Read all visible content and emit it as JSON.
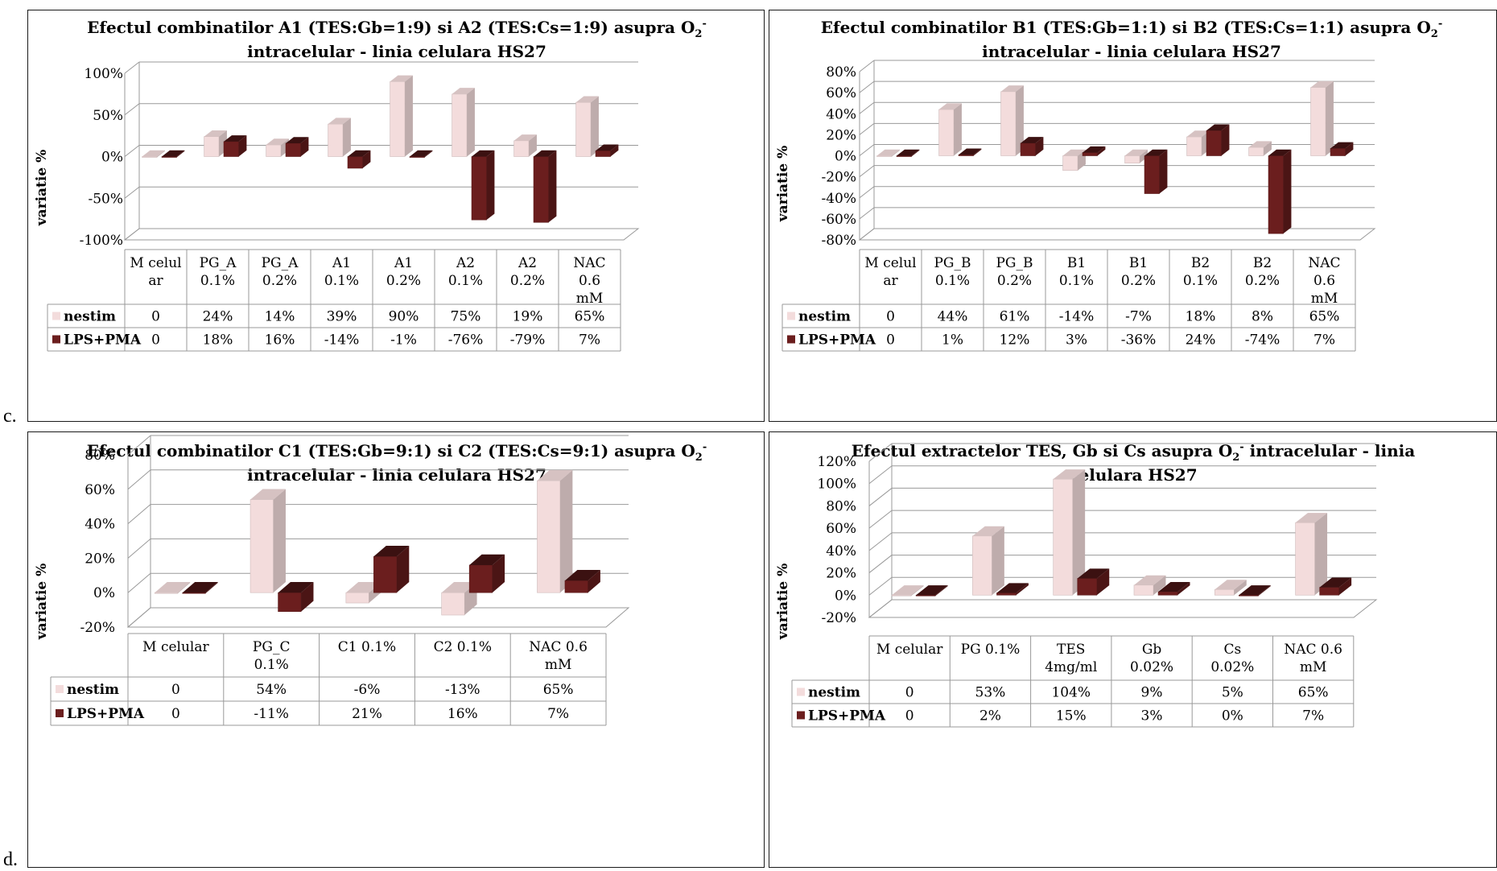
{
  "figure_labels": {
    "c": "c.",
    "d": "d."
  },
  "legend": {
    "nestim": "nestim",
    "lps": "LPS+PMA"
  },
  "colors": {
    "nestim": "#f3dcdc",
    "lps": "#6b1e1e",
    "grid": "#999999",
    "border": "#1a1a1a"
  },
  "chart_data": [
    {
      "id": "A",
      "type": "bar",
      "title_lines": [
        "Efectul combinatilor A1 (TES:Gb=1:9) si A2 (TES:Cs=1:9) asupra O",
        "intracelular - linia celulara HS27"
      ],
      "title_sub": "2",
      "title_sup": "-",
      "ylabel": "variatie %",
      "yticks": [
        "100%",
        "50%",
        "0%",
        "-50%",
        "-100%"
      ],
      "ylim": [
        -100,
        100
      ],
      "categories": [
        [
          "M celul",
          "ar"
        ],
        [
          "PG_A",
          "0.1%"
        ],
        [
          "PG_A",
          "0.2%"
        ],
        [
          "A1",
          "0.1%"
        ],
        [
          "A1",
          "0.2%"
        ],
        [
          "A2",
          "0.1%"
        ],
        [
          "A2",
          "0.2%"
        ],
        [
          "NAC",
          "0.6",
          "mM"
        ]
      ],
      "series": [
        {
          "name": "nestim",
          "values": [
            0,
            24,
            14,
            39,
            90,
            75,
            19,
            65
          ],
          "labels": [
            "0",
            "24%",
            "14%",
            "39%",
            "90%",
            "75%",
            "19%",
            "65%"
          ]
        },
        {
          "name": "LPS+PMA",
          "values": [
            0,
            18,
            16,
            -14,
            -1,
            -76,
            -79,
            7
          ],
          "labels": [
            "0",
            "18%",
            "16%",
            "-14%",
            "-1%",
            "-76%",
            "-79%",
            "7%"
          ]
        }
      ]
    },
    {
      "id": "B",
      "type": "bar",
      "title_lines": [
        "Efectul combinatilor B1 (TES:Gb=1:1) si B2 (TES:Cs=1:1) asupra O",
        "intracelular - linia celulara HS27"
      ],
      "title_sub": "2",
      "title_sup": "-",
      "ylabel": "variatie %",
      "yticks": [
        "80%",
        "60%",
        "40%",
        "20%",
        "0%",
        "-20%",
        "-40%",
        "-60%",
        "-80%"
      ],
      "ylim": [
        -80,
        80
      ],
      "categories": [
        [
          "M celul",
          "ar"
        ],
        [
          "PG_B",
          "0.1%"
        ],
        [
          "PG_B",
          "0.2%"
        ],
        [
          "B1",
          "0.1%"
        ],
        [
          "B1",
          "0.2%"
        ],
        [
          "B2",
          "0.1%"
        ],
        [
          "B2",
          "0.2%"
        ],
        [
          "NAC",
          "0.6",
          "mM"
        ]
      ],
      "series": [
        {
          "name": "nestim",
          "values": [
            0,
            44,
            61,
            -14,
            -7,
            18,
            8,
            65
          ],
          "labels": [
            "0",
            "44%",
            "61%",
            "-14%",
            "-7%",
            "18%",
            "8%",
            "65%"
          ]
        },
        {
          "name": "LPS+PMA",
          "values": [
            0,
            1,
            12,
            3,
            -36,
            24,
            -74,
            7
          ],
          "labels": [
            "0",
            "1%",
            "12%",
            "3%",
            "-36%",
            "24%",
            "-74%",
            "7%"
          ]
        }
      ]
    },
    {
      "id": "C",
      "type": "bar",
      "title_lines": [
        "Efectul combinatilor C1 (TES:Gb=9:1) si C2 (TES:Cs=9:1) asupra O",
        "intracelular - linia celulara HS27"
      ],
      "title_sub": "2",
      "title_sup": "-",
      "ylabel": "variatie %",
      "yticks": [
        "80%",
        "60%",
        "40%",
        "20%",
        "0%",
        "-20%"
      ],
      "ylim": [
        -20,
        80
      ],
      "categories": [
        [
          "M celular"
        ],
        [
          "PG_C",
          "0.1%"
        ],
        [
          "C1 0.1%"
        ],
        [
          "C2 0.1%"
        ],
        [
          "NAC 0.6",
          "mM"
        ]
      ],
      "series": [
        {
          "name": "nestim",
          "values": [
            0,
            54,
            -6,
            -13,
            65
          ],
          "labels": [
            "0",
            "54%",
            "-6%",
            "-13%",
            "65%"
          ]
        },
        {
          "name": "LPS+PMA",
          "values": [
            0,
            -11,
            21,
            16,
            7
          ],
          "labels": [
            "0",
            "-11%",
            "21%",
            "16%",
            "7%"
          ]
        }
      ]
    },
    {
      "id": "D",
      "type": "bar",
      "title_lines": [
        "Efectul extractelor TES, Gb si Cs asupra O",
        "celulara HS27"
      ],
      "title_tail": " intracelular - linia",
      "title_sub": "2",
      "title_sup": "-",
      "ylabel": "variatie %",
      "yticks": [
        "120%",
        "100%",
        "80%",
        "60%",
        "40%",
        "20%",
        "0%",
        "-20%"
      ],
      "ylim": [
        -20,
        120
      ],
      "categories": [
        [
          "M celular"
        ],
        [
          "PG 0.1%"
        ],
        [
          "TES",
          "4mg/ml"
        ],
        [
          "Gb",
          "0.02%"
        ],
        [
          "Cs",
          "0.02%"
        ],
        [
          "NAC 0.6",
          "mM"
        ]
      ],
      "series": [
        {
          "name": "nestim",
          "values": [
            0,
            53,
            104,
            9,
            5,
            65
          ],
          "labels": [
            "0",
            "53%",
            "104%",
            "9%",
            "5%",
            "65%"
          ]
        },
        {
          "name": "LPS+PMA",
          "values": [
            0,
            2,
            15,
            3,
            0,
            7
          ],
          "labels": [
            "0",
            "2%",
            "15%",
            "3%",
            "0%",
            "7%"
          ]
        }
      ]
    }
  ]
}
